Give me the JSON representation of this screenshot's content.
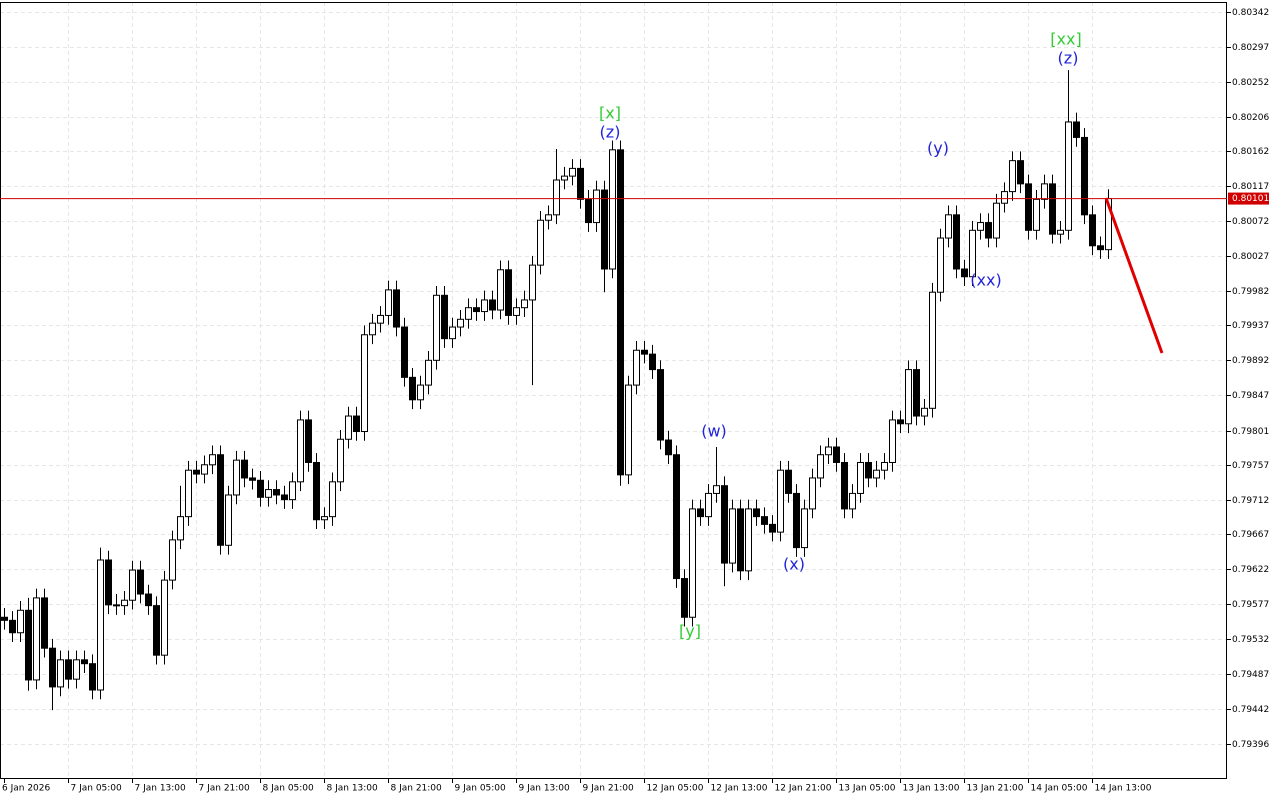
{
  "chart_data": {
    "type": "candlestick",
    "x_labels": [
      "6 Jan 2026",
      "7 Jan 05:00",
      "7 Jan 13:00",
      "7 Jan 21:00",
      "8 Jan 05:00",
      "8 Jan 13:00",
      "8 Jan 21:00",
      "9 Jan 05:00",
      "9 Jan 13:00",
      "9 Jan 21:00",
      "12 Jan 05:00",
      "12 Jan 13:00",
      "12 Jan 21:00",
      "13 Jan 05:00",
      "13 Jan 13:00",
      "13 Jan 21:00",
      "14 Jan 05:00",
      "14 Jan 13:00"
    ],
    "ylim": [
      0.79351,
      0.80355
    ],
    "yticks": [
      0.80342,
      0.80297,
      0.80252,
      0.80206,
      0.80162,
      0.80117,
      0.80072,
      0.80027,
      0.79982,
      0.79937,
      0.79892,
      0.79847,
      0.79801,
      0.79757,
      0.79712,
      0.79667,
      0.79622,
      0.79577,
      0.79532,
      0.79487,
      0.79442,
      0.79396
    ],
    "grid": true,
    "up_color": "#ffffff",
    "down_color": "#000000",
    "current_price": 0.80101,
    "current_price_color": "#d00000",
    "open": [
      0.7956,
      0.79556,
      0.7954,
      0.79569,
      0.79479,
      0.79585,
      0.7952,
      0.7947,
      0.79505,
      0.7948,
      0.79505,
      0.795,
      0.79466,
      0.79634,
      0.79576,
      0.79575,
      0.79582,
      0.79621,
      0.7959,
      0.79575,
      0.79511,
      0.79608,
      0.7966,
      0.7969,
      0.7975,
      0.79745,
      0.79757,
      0.7977,
      0.79653,
      0.79718,
      0.79763,
      0.7974,
      0.79737,
      0.79715,
      0.79725,
      0.79718,
      0.79712,
      0.79735,
      0.79815,
      0.7976,
      0.79686,
      0.7969,
      0.79735,
      0.7979,
      0.7982,
      0.798,
      0.79925,
      0.7994,
      0.7995,
      0.79983,
      0.79935,
      0.7987,
      0.79841,
      0.7986,
      0.79892,
      0.79976,
      0.7992,
      0.79935,
      0.79945,
      0.7996,
      0.79955,
      0.7997,
      0.79957,
      0.80009,
      0.7995,
      0.7996,
      0.7997,
      0.80015,
      0.80073,
      0.8008,
      0.80125,
      0.8013,
      0.8014,
      0.801,
      0.8007,
      0.80112,
      0.8001,
      0.80164,
      0.79744,
      0.7986,
      0.79905,
      0.799,
      0.7988,
      0.79789,
      0.7977,
      0.7961,
      0.7956,
      0.797,
      0.7969,
      0.7972,
      0.7973,
      0.7963,
      0.797,
      0.7962,
      0.797,
      0.7969,
      0.7968,
      0.7967,
      0.7975,
      0.7972,
      0.7965,
      0.797,
      0.7974,
      0.7977,
      0.7978,
      0.7976,
      0.797,
      0.7972,
      0.7976,
      0.7974,
      0.7975,
      0.7976,
      0.79815,
      0.7981,
      0.7988,
      0.7982,
      0.7983,
      0.7998,
      0.8005,
      0.8008,
      0.8001,
      0.8,
      0.8006,
      0.8007,
      0.8005,
      0.80095,
      0.8011,
      0.8015,
      0.8012,
      0.8006,
      0.801,
      0.8012,
      0.80055,
      0.8006,
      0.802,
      0.8018,
      0.8008,
      0.8004,
      0.80035
    ],
    "high": [
      0.79572,
      0.79568,
      0.79581,
      0.79585,
      0.79597,
      0.79597,
      0.79532,
      0.79517,
      0.79517,
      0.79517,
      0.79517,
      0.79512,
      0.7965,
      0.79646,
      0.7959,
      0.79594,
      0.79633,
      0.79633,
      0.79602,
      0.79587,
      0.7962,
      0.79672,
      0.7973,
      0.79762,
      0.79762,
      0.79769,
      0.79782,
      0.79782,
      0.7973,
      0.79775,
      0.79775,
      0.79752,
      0.79749,
      0.79737,
      0.79737,
      0.7973,
      0.79747,
      0.79827,
      0.79827,
      0.79772,
      0.79702,
      0.79747,
      0.79802,
      0.79832,
      0.79832,
      0.79937,
      0.79952,
      0.79962,
      0.79995,
      0.79995,
      0.79947,
      0.79882,
      0.79872,
      0.79904,
      0.79988,
      0.79988,
      0.79947,
      0.79957,
      0.79972,
      0.79972,
      0.79982,
      0.79982,
      0.80021,
      0.80021,
      0.79972,
      0.79982,
      0.80027,
      0.80085,
      0.80092,
      0.80165,
      0.80142,
      0.80152,
      0.80152,
      0.80112,
      0.80124,
      0.80124,
      0.80176,
      0.80176,
      0.79872,
      0.79917,
      0.79917,
      0.79912,
      0.79892,
      0.79801,
      0.79782,
      0.79622,
      0.79712,
      0.79712,
      0.79732,
      0.7978,
      0.79742,
      0.79712,
      0.79712,
      0.79712,
      0.79712,
      0.79702,
      0.79692,
      0.79762,
      0.79762,
      0.79732,
      0.79712,
      0.79752,
      0.79782,
      0.79792,
      0.79792,
      0.79772,
      0.79732,
      0.79772,
      0.79772,
      0.79762,
      0.79772,
      0.79827,
      0.79827,
      0.79892,
      0.79892,
      0.79842,
      0.79992,
      0.80062,
      0.80092,
      0.80092,
      0.80022,
      0.80072,
      0.80082,
      0.80082,
      0.80107,
      0.80122,
      0.80162,
      0.80162,
      0.80132,
      0.80112,
      0.80132,
      0.80132,
      0.80072,
      0.80267,
      0.80212,
      0.80192,
      0.80092,
      0.80052,
      0.80113
    ],
    "low": [
      0.79544,
      0.79528,
      0.79528,
      0.79465,
      0.79467,
      0.79508,
      0.7944,
      0.79458,
      0.79468,
      0.79468,
      0.79488,
      0.79454,
      0.79454,
      0.79564,
      0.79563,
      0.79563,
      0.7957,
      0.79578,
      0.79563,
      0.79499,
      0.79499,
      0.79596,
      0.79648,
      0.79678,
      0.79733,
      0.79733,
      0.79745,
      0.79641,
      0.79641,
      0.79706,
      0.79728,
      0.79725,
      0.79703,
      0.79703,
      0.79706,
      0.797,
      0.797,
      0.79723,
      0.79748,
      0.79674,
      0.79674,
      0.79678,
      0.79723,
      0.79778,
      0.79788,
      0.79788,
      0.79913,
      0.79928,
      0.79938,
      0.79923,
      0.79858,
      0.79829,
      0.79829,
      0.79848,
      0.7988,
      0.79908,
      0.79908,
      0.79923,
      0.79933,
      0.79943,
      0.79943,
      0.79945,
      0.79945,
      0.79938,
      0.79938,
      0.79948,
      0.7986,
      0.80003,
      0.80061,
      0.80068,
      0.80113,
      0.80118,
      0.80088,
      0.80058,
      0.80058,
      0.7998,
      0.79998,
      0.7973,
      0.79732,
      0.79848,
      0.79888,
      0.79868,
      0.79777,
      0.79758,
      0.79598,
      0.79548,
      0.79548,
      0.79678,
      0.79678,
      0.79708,
      0.796,
      0.79618,
      0.79608,
      0.79608,
      0.79678,
      0.79668,
      0.79658,
      0.79658,
      0.79708,
      0.79638,
      0.79638,
      0.79688,
      0.79728,
      0.79758,
      0.79748,
      0.79688,
      0.79688,
      0.79708,
      0.79728,
      0.79728,
      0.79738,
      0.79748,
      0.79798,
      0.79798,
      0.79808,
      0.79808,
      0.79818,
      0.79968,
      0.80038,
      0.79998,
      0.79988,
      0.79988,
      0.80048,
      0.80038,
      0.80038,
      0.80083,
      0.80098,
      0.80108,
      0.80048,
      0.80048,
      0.80088,
      0.80043,
      0.80043,
      0.80048,
      0.80168,
      0.80068,
      0.80028,
      0.80023,
      0.80023
    ],
    "close": [
      0.79556,
      0.7954,
      0.79569,
      0.79479,
      0.79585,
      0.7952,
      0.7947,
      0.79505,
      0.7948,
      0.79505,
      0.795,
      0.79466,
      0.79634,
      0.79576,
      0.79575,
      0.79582,
      0.79621,
      0.7959,
      0.79575,
      0.79511,
      0.79608,
      0.7966,
      0.7969,
      0.7975,
      0.79745,
      0.79757,
      0.7977,
      0.79653,
      0.79718,
      0.79763,
      0.7974,
      0.79737,
      0.79715,
      0.79725,
      0.79718,
      0.79712,
      0.79735,
      0.79815,
      0.7976,
      0.79686,
      0.7969,
      0.79735,
      0.7979,
      0.7982,
      0.798,
      0.79925,
      0.7994,
      0.7995,
      0.79983,
      0.79935,
      0.7987,
      0.79841,
      0.7986,
      0.79892,
      0.79976,
      0.7992,
      0.79935,
      0.79945,
      0.7996,
      0.79955,
      0.7997,
      0.79957,
      0.80009,
      0.7995,
      0.7996,
      0.7997,
      0.80015,
      0.80073,
      0.8008,
      0.80125,
      0.8013,
      0.8014,
      0.801,
      0.8007,
      0.80112,
      0.8001,
      0.80164,
      0.79744,
      0.7986,
      0.79905,
      0.799,
      0.7988,
      0.79789,
      0.7977,
      0.7961,
      0.7956,
      0.797,
      0.7969,
      0.7972,
      0.7973,
      0.7963,
      0.797,
      0.7962,
      0.797,
      0.7969,
      0.7968,
      0.7967,
      0.7975,
      0.7972,
      0.7965,
      0.797,
      0.7974,
      0.7977,
      0.7978,
      0.7976,
      0.797,
      0.7972,
      0.7976,
      0.7974,
      0.7975,
      0.7976,
      0.79815,
      0.7981,
      0.7988,
      0.7982,
      0.7983,
      0.7998,
      0.8005,
      0.8008,
      0.8001,
      0.8,
      0.8006,
      0.8007,
      0.8005,
      0.80095,
      0.8011,
      0.8015,
      0.8012,
      0.8006,
      0.801,
      0.8012,
      0.80055,
      0.8006,
      0.802,
      0.8018,
      0.8008,
      0.8004,
      0.80035,
      0.80101
    ],
    "annotations": [
      {
        "text": "[x]",
        "color": "#33cc33"
      },
      {
        "text": "(z)",
        "color": "#2222dd"
      },
      {
        "text": "(w)",
        "color": "#2222dd"
      },
      {
        "text": "[y]",
        "color": "#33cc33"
      },
      {
        "text": "(x)",
        "color": "#2222dd"
      },
      {
        "text": "(y)",
        "color": "#2222dd"
      },
      {
        "text": "(xx)",
        "color": "#2222dd"
      },
      {
        "text": "[xx]",
        "color": "#33cc33"
      },
      {
        "text": "(z)",
        "color": "#2222dd"
      }
    ]
  }
}
